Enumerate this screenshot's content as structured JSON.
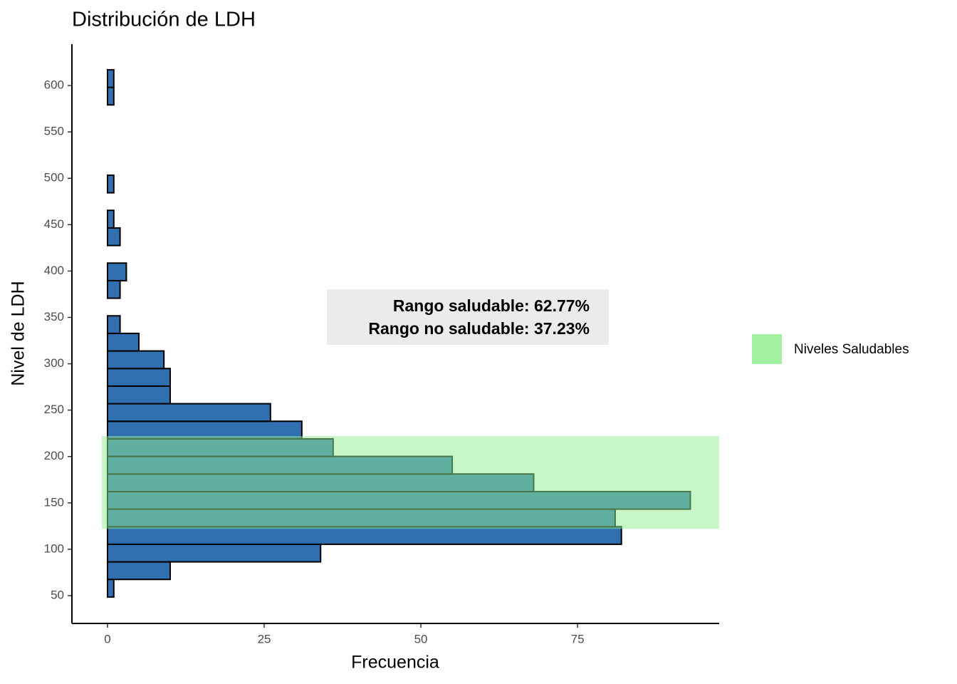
{
  "chart_data": {
    "type": "histogram",
    "orientation": "horizontal",
    "title": "Distribución de LDH",
    "x_label": "Frecuencia",
    "y_label": "Nivel de LDH",
    "bins": [
      48.5,
      67.45,
      86.4,
      105.35,
      124.3,
      143.25,
      162.2,
      181.15,
      200.1,
      219.05,
      238,
      256.95,
      275.9,
      294.85,
      313.8,
      332.75,
      351.7,
      370.65,
      389.6,
      408.55,
      427.5,
      446.45,
      465.4,
      484.35,
      503.3,
      522.25,
      541.2,
      560.15,
      579.1,
      598.05,
      617
    ],
    "values": [
      1,
      10,
      34,
      82,
      81,
      93,
      68,
      55,
      36,
      31,
      26,
      10,
      10,
      9,
      5,
      2,
      0,
      2,
      3,
      0,
      2,
      1,
      0,
      1,
      0,
      0,
      0,
      0,
      1,
      1
    ],
    "color": "#3070b0",
    "xlim": [
      -5.68,
      97.6
    ],
    "xticks": [
      0,
      25,
      50,
      75
    ],
    "ylim": [
      20,
      644.6
    ],
    "yticks": [
      50,
      100,
      150,
      200,
      250,
      300,
      350,
      400,
      450,
      500,
      550,
      600
    ],
    "band": {
      "name": "Niveles Saludables",
      "ymin": 122,
      "ymax": 222,
      "color": "#90ee90"
    },
    "annotation": [
      "Rango saludable: 62.77%",
      "Rango no saludable: 37.23%"
    ]
  }
}
